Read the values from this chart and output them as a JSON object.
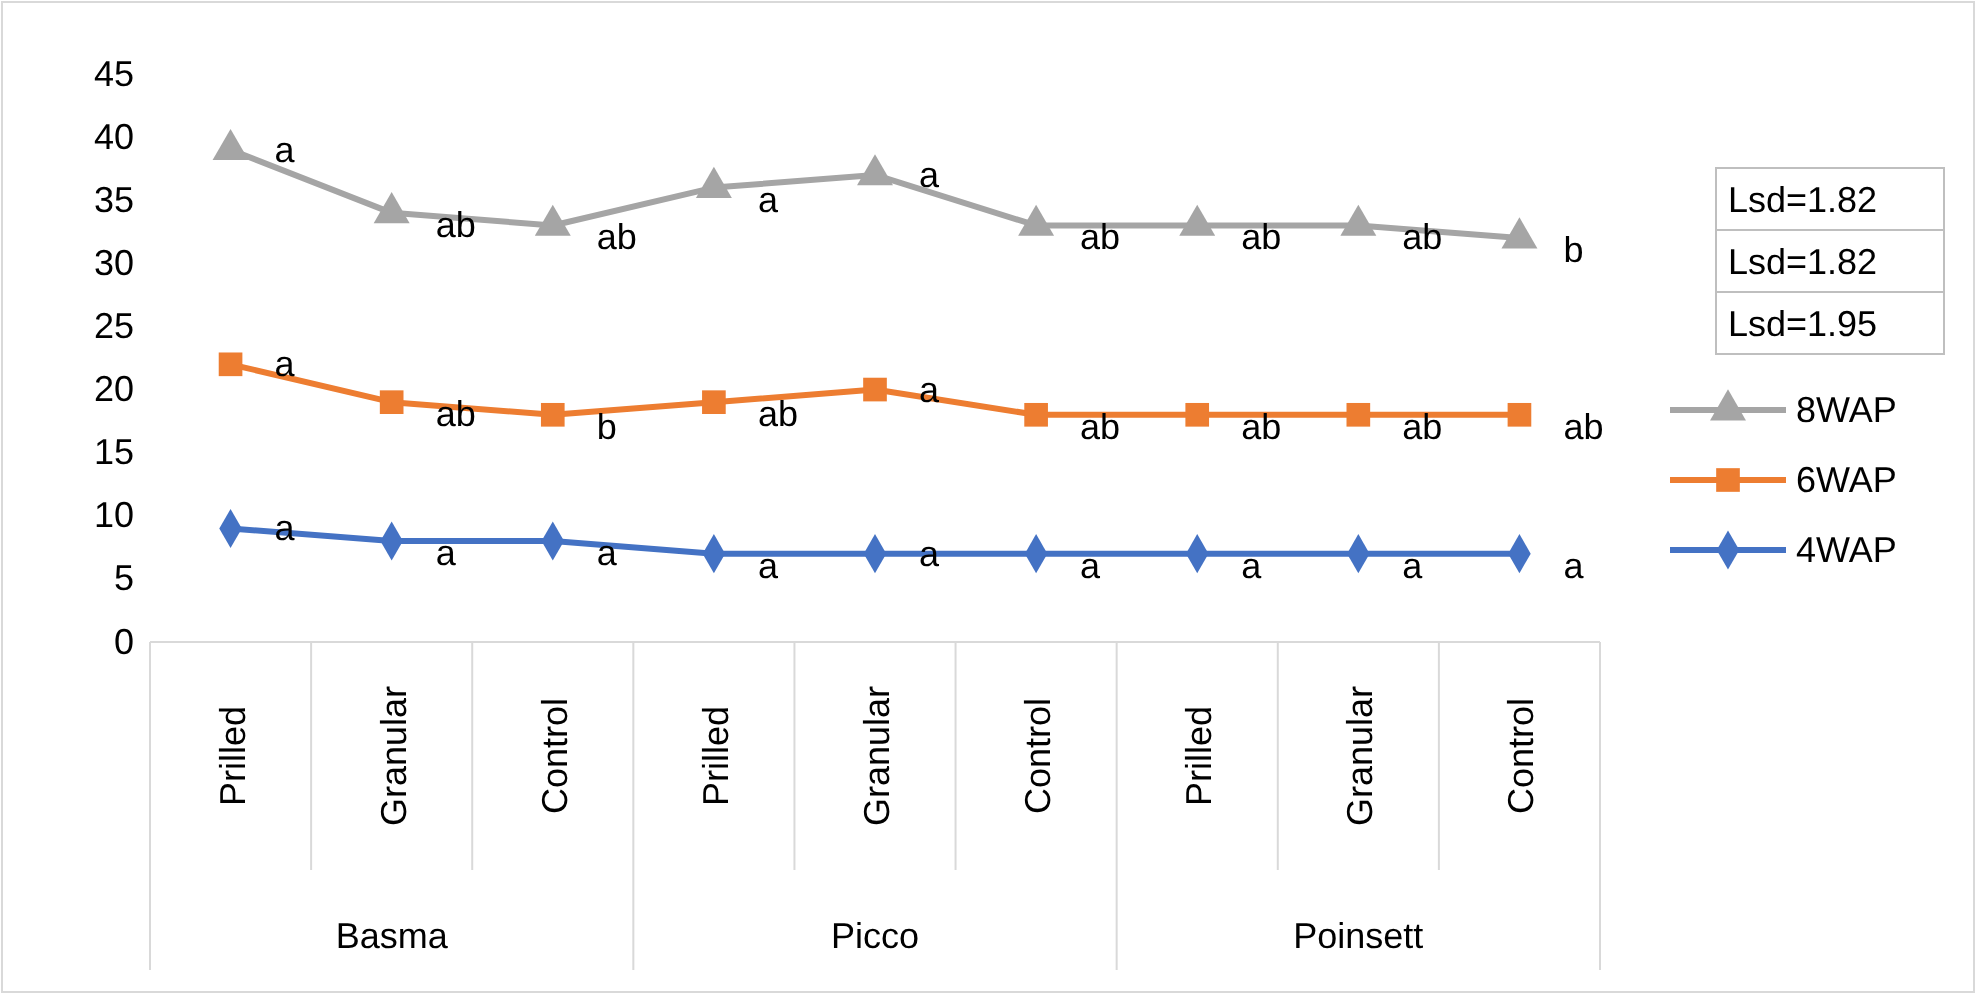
{
  "chart_data": {
    "type": "line",
    "categories": [
      "Prilled",
      "Granular",
      "Control",
      "Prilled",
      "Granular",
      "Control",
      "Prilled",
      "Granular",
      "Control"
    ],
    "series": [
      {
        "name": "8WAP",
        "color": "#a5a5a5",
        "marker": "triangle",
        "values": [
          39,
          34,
          33,
          36,
          37,
          33,
          33,
          33,
          32
        ],
        "value_labels": [
          "a",
          "ab",
          "ab",
          "a",
          "a",
          "ab",
          "ab",
          "ab",
          "b"
        ]
      },
      {
        "name": "6WAP",
        "color": "#ed7d31",
        "marker": "square",
        "values": [
          22,
          19,
          18,
          19,
          20,
          18,
          18,
          18,
          18
        ],
        "value_labels": [
          "a",
          "ab",
          "b",
          "ab",
          "a",
          "ab",
          "ab",
          "ab",
          "ab"
        ]
      },
      {
        "name": "4WAP",
        "color": "#4472c4",
        "marker": "diamond",
        "values": [
          9,
          8,
          8,
          7,
          7,
          7,
          7,
          7,
          7
        ],
        "value_labels": [
          "a",
          "a",
          "a",
          "a",
          "a",
          "a",
          "a",
          "a",
          "a"
        ]
      }
    ],
    "annotations": [
      "Lsd=1.82",
      "Lsd=1.82",
      "Lsd=1.95",
      "Basma",
      "Picco",
      "Poinsett"
    ],
    "ylim": [
      0,
      45
    ],
    "yticks": [
      0,
      5,
      10,
      15,
      20,
      25,
      30,
      35,
      40,
      45
    ],
    "grid": false,
    "legend": "right",
    "line_style": "solid"
  }
}
